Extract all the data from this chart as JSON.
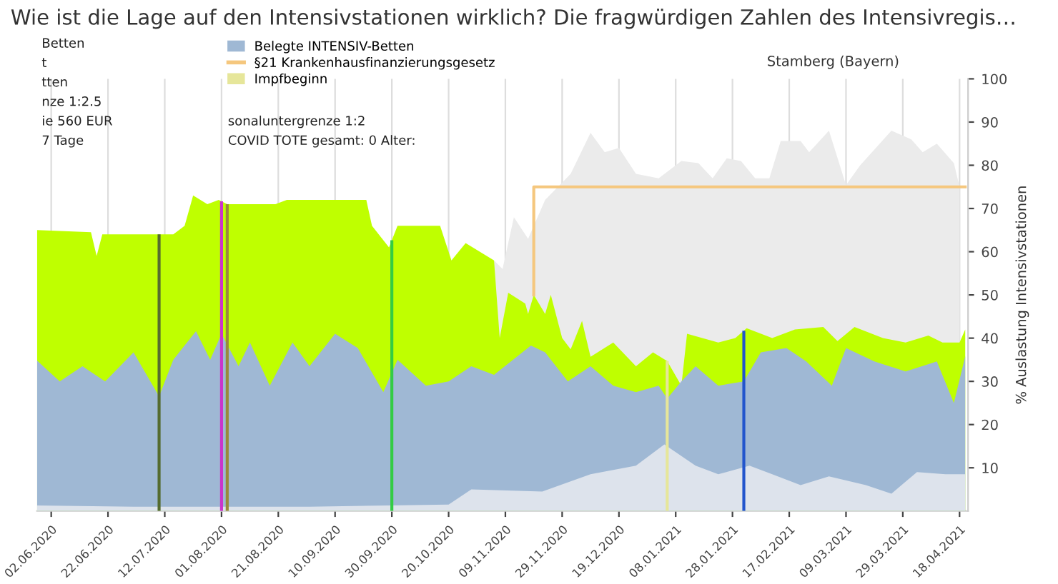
{
  "chart_data": {
    "type": "area",
    "title": "Wie ist die Lage auf den Intensivstationen wirklich? Die fragwürdigen Zahlen des Intensivregis…",
    "subtitle": "Stamberg (Bayern)",
    "ylabel": "% Auslastung Intensivstationen",
    "annotations": [
      "Betten",
      "t",
      "tten",
      "nze 1:2.5",
      "ie 560 EUR",
      "7 Tage",
      "sonaluntergrenze 1:2",
      "COVID TOTE gesamt: 0 Alter:"
    ],
    "series": [
      {
        "name": null,
        "color": "#ebebeb",
        "x": [
          "2020-11-05",
          "2020-11-08",
          "2020-11-12",
          "2020-11-17",
          "2020-11-23",
          "2020-12-02",
          "2020-12-09",
          "2020-12-14",
          "2020-12-19",
          "2020-12-25",
          "2021-01-02",
          "2021-01-10",
          "2021-01-16",
          "2021-01-21",
          "2021-01-26",
          "2021-01-31",
          "2021-02-05",
          "2021-02-10",
          "2021-02-14",
          "2021-02-21",
          "2021-02-24",
          "2021-03-03",
          "2021-03-09",
          "2021-03-14",
          "2021-03-25",
          "2021-04-01",
          "2021-04-05",
          "2021-04-10",
          "2021-04-16",
          "2021-04-18"
        ],
        "values": [
          58,
          56,
          68,
          63,
          72,
          78,
          87.5,
          83,
          84,
          78,
          77,
          81,
          80.5,
          77,
          81.6,
          81,
          77,
          77,
          85.6,
          85.6,
          83,
          88,
          75.4,
          80,
          88,
          86,
          83,
          85,
          80.5,
          75
        ]
      },
      {
        "name": null,
        "color": "#bfff00",
        "x": [
          "2020-05-28",
          "2020-06-16",
          "2020-06-18",
          "2020-06-20",
          "2020-07-15",
          "2020-07-19",
          "2020-07-22",
          "2020-07-27",
          "2020-07-31",
          "2020-08-03",
          "2020-08-20",
          "2020-08-24",
          "2020-09-21",
          "2020-09-23",
          "2020-09-29",
          "2020-10-02",
          "2020-10-17",
          "2020-10-21",
          "2020-10-26",
          "2020-11-05",
          "2020-11-07",
          "2020-11-10",
          "2020-11-16",
          "2020-11-17",
          "2020-11-19",
          "2020-11-23",
          "2020-11-25",
          "2020-11-29",
          "2020-12-02",
          "2020-12-06",
          "2020-12-09",
          "2020-12-17",
          "2020-12-25",
          "2020-12-31",
          "2021-01-05",
          "2021-01-10",
          "2021-01-12",
          "2021-01-23",
          "2021-01-29",
          "2021-02-02",
          "2021-02-11",
          "2021-02-19",
          "2021-03-01",
          "2021-03-06",
          "2021-03-12",
          "2021-03-22",
          "2021-03-30",
          "2021-04-07",
          "2021-04-12",
          "2021-04-18",
          "2021-04-20"
        ],
        "values": [
          65,
          64.5,
          59,
          64,
          64,
          66,
          73,
          71,
          72,
          71,
          71,
          72,
          72,
          66,
          61,
          66,
          66,
          58,
          62,
          58,
          40,
          50.5,
          48,
          45.6,
          50,
          45.6,
          50,
          40,
          37.4,
          44,
          35.7,
          39,
          33.5,
          36.7,
          34.7,
          29,
          41,
          39,
          40,
          42.3,
          40,
          42,
          42.6,
          39.3,
          42.6,
          40,
          39,
          40.6,
          39,
          39,
          42
        ]
      },
      {
        "name": "Belegte INTENSIV-Betten",
        "color": "#9fb8d4",
        "x": [
          "2020-05-28",
          "2020-06-05",
          "2020-06-13",
          "2020-06-21",
          "2020-07-01",
          "2020-07-10",
          "2020-07-15",
          "2020-07-23",
          "2020-07-28",
          "2020-08-01",
          "2020-08-07",
          "2020-08-11",
          "2020-08-18",
          "2020-08-26",
          "2020-09-01",
          "2020-09-10",
          "2020-09-18",
          "2020-09-27",
          "2020-10-02",
          "2020-10-12",
          "2020-10-20",
          "2020-10-28",
          "2020-11-05",
          "2020-11-18",
          "2020-11-23",
          "2020-12-01",
          "2020-12-09",
          "2020-12-17",
          "2020-12-25",
          "2021-01-02",
          "2021-01-05",
          "2021-01-10",
          "2021-01-15",
          "2021-01-23",
          "2021-02-01",
          "2021-02-07",
          "2021-02-16",
          "2021-02-23",
          "2021-03-04",
          "2021-03-09",
          "2021-03-19",
          "2021-03-30",
          "2021-04-10",
          "2021-04-16",
          "2021-04-20"
        ],
        "values": [
          34.8,
          30,
          33.5,
          30,
          36.7,
          26.5,
          35,
          41.6,
          35,
          41,
          33.5,
          39,
          29,
          39,
          33.5,
          41,
          37.7,
          27.5,
          35,
          29,
          30,
          33.5,
          31.5,
          38.3,
          36.7,
          30,
          33.5,
          29,
          27.5,
          29,
          26,
          30,
          33.5,
          29,
          30,
          36.7,
          37.7,
          34.6,
          29,
          37.7,
          34.6,
          32.3,
          34.6,
          25,
          35.8
        ]
      },
      {
        "name": null,
        "color": "#dde3ec",
        "x": [
          "2020-05-28",
          "2020-07-01",
          "2020-09-01",
          "2020-10-20",
          "2020-10-28",
          "2020-11-22",
          "2020-12-09",
          "2020-12-25",
          "2021-01-04",
          "2021-01-15",
          "2021-01-23",
          "2021-02-03",
          "2021-02-11",
          "2021-02-21",
          "2021-03-03",
          "2021-03-16",
          "2021-03-25",
          "2021-04-03",
          "2021-04-13",
          "2021-04-20"
        ],
        "values": [
          1.3,
          1,
          1,
          1.5,
          5,
          4.5,
          8.5,
          10.5,
          15.4,
          10.5,
          8.5,
          10.5,
          8.5,
          6,
          8,
          6,
          4,
          9,
          8.5,
          8.5
        ]
      },
      {
        "name": "§21 Krankenhausfinanzierungsgesetz",
        "type": "line",
        "color": "#f5c77e",
        "x": [
          "2020-11-19",
          "2020-11-19",
          "2021-04-20"
        ],
        "values": [
          50,
          75,
          75
        ]
      }
    ],
    "ref_lines": [
      {
        "axis": "x",
        "value": "2020-07-10",
        "color": "#556b2f"
      },
      {
        "axis": "x",
        "value": "2020-08-01",
        "color": "#cc33cc"
      },
      {
        "axis": "x",
        "value": "2020-08-03",
        "color": "#9a8a3a"
      },
      {
        "axis": "x",
        "value": "2020-09-30",
        "color": "#33cc44"
      },
      {
        "axis": "x",
        "value": "2021-01-05",
        "color": "#e6e69a",
        "label": "Impfbeginn"
      },
      {
        "axis": "x",
        "value": "2021-02-01",
        "color": "#2255cc"
      }
    ],
    "xlim": [
      "2020-05-28",
      "2021-04-21"
    ],
    "xticks": [
      {
        "value": "2020-06-02",
        "label": "02.06.2020"
      },
      {
        "value": "2020-06-22",
        "label": "22.06.2020"
      },
      {
        "value": "2020-07-12",
        "label": "12.07.2020"
      },
      {
        "value": "2020-08-01",
        "label": "01.08.2020"
      },
      {
        "value": "2020-08-21",
        "label": "21.08.2020"
      },
      {
        "value": "2020-09-10",
        "label": "10.09.2020"
      },
      {
        "value": "2020-09-30",
        "label": "30.09.2020"
      },
      {
        "value": "2020-10-20",
        "label": "20.10.2020"
      },
      {
        "value": "2020-11-09",
        "label": "09.11.2020"
      },
      {
        "value": "2020-11-29",
        "label": "29.11.2020"
      },
      {
        "value": "2020-12-19",
        "label": "19.12.2020"
      },
      {
        "value": "2021-01-08",
        "label": "08.01.2021"
      },
      {
        "value": "2021-01-28",
        "label": "28.01.2021"
      },
      {
        "value": "2021-02-17",
        "label": "17.02.2021"
      },
      {
        "value": "2021-03-09",
        "label": "09.03.2021"
      },
      {
        "value": "2021-03-29",
        "label": "29.03.2021"
      },
      {
        "value": "2021-04-18",
        "label": "18.04.2021"
      }
    ],
    "ylim": [
      0,
      100
    ],
    "yticks": [
      10,
      20,
      30,
      40,
      50,
      60,
      70,
      80,
      90,
      100
    ],
    "grid": "x",
    "legend": "top left"
  }
}
